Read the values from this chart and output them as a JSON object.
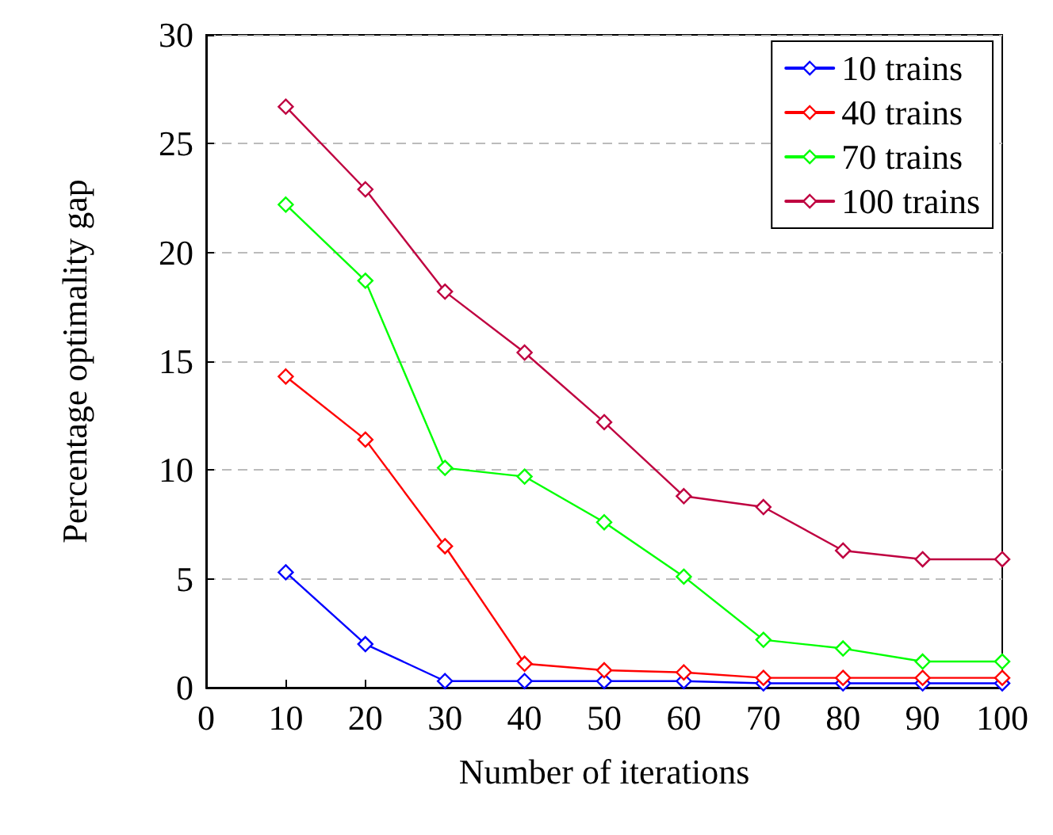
{
  "chart_data": {
    "type": "line",
    "xlabel": "Number of iterations",
    "ylabel": "Percentage optimality gap",
    "x": [
      10,
      20,
      30,
      40,
      50,
      60,
      70,
      80,
      90,
      100
    ],
    "series": [
      {
        "name": "10 trains",
        "color": "#0000ff",
        "values": [
          5.3,
          2.0,
          0.3,
          0.3,
          0.3,
          0.3,
          0.2,
          0.2,
          0.2,
          0.2
        ]
      },
      {
        "name": "40 trains",
        "color": "#ff0000",
        "values": [
          14.3,
          11.4,
          6.5,
          1.1,
          0.8,
          0.7,
          0.45,
          0.45,
          0.45,
          0.45
        ]
      },
      {
        "name": "70 trains",
        "color": "#00ff00",
        "values": [
          22.2,
          18.7,
          10.1,
          9.7,
          7.6,
          5.1,
          2.2,
          1.8,
          1.2,
          1.2
        ]
      },
      {
        "name": "100 trains",
        "color": "#bf0040",
        "values": [
          26.7,
          22.9,
          18.2,
          15.4,
          12.2,
          8.8,
          8.3,
          6.3,
          5.9,
          5.9
        ]
      }
    ],
    "xlim": [
      0,
      100
    ],
    "xticks": [
      0,
      10,
      20,
      30,
      40,
      50,
      60,
      70,
      80,
      90,
      100
    ],
    "ylim": [
      0,
      30
    ],
    "yticks": [
      0,
      5,
      10,
      15,
      20,
      25,
      30
    ],
    "grid": "y",
    "legend": "top right",
    "marker": "diamond",
    "line_style": "solid"
  }
}
